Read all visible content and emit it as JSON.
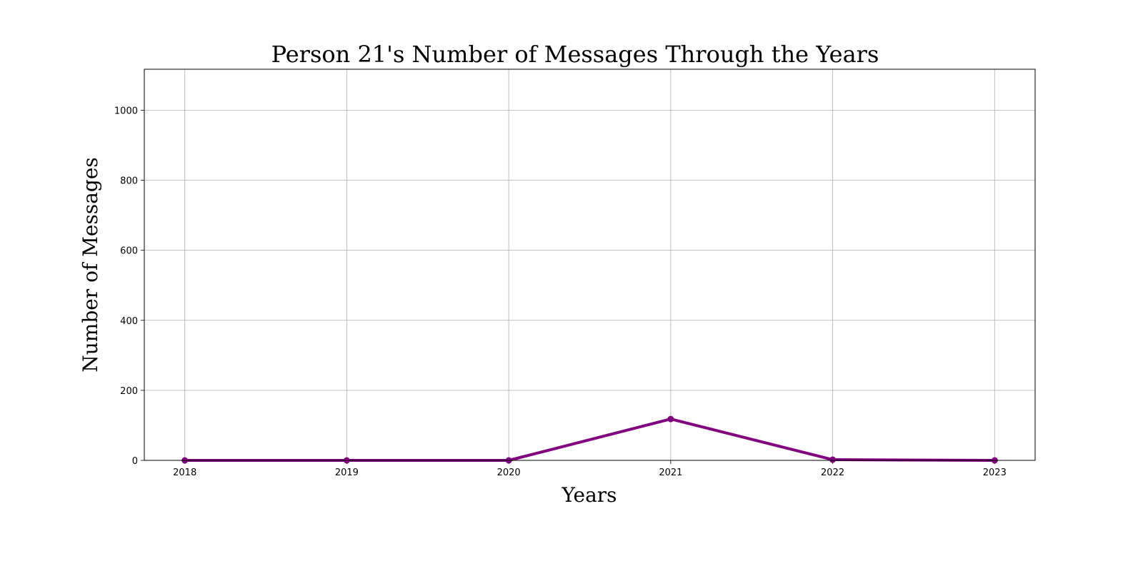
{
  "chart_data": {
    "type": "line",
    "title": "Person 21's Number of Messages Through the Years",
    "xlabel": "Years",
    "ylabel": "Number of Messages",
    "x": [
      "2018",
      "2019",
      "2020",
      "2021",
      "2022",
      "2023"
    ],
    "series": [
      {
        "values": [
          0,
          0,
          0,
          118,
          2,
          0
        ],
        "color": "#800080",
        "marker": "circle"
      }
    ],
    "xlim": [
      2017.75,
      2023.25
    ],
    "ylim": [
      0,
      1117
    ],
    "yticks": [
      0,
      200,
      400,
      600,
      800,
      1000
    ],
    "grid": true,
    "legend": false
  }
}
